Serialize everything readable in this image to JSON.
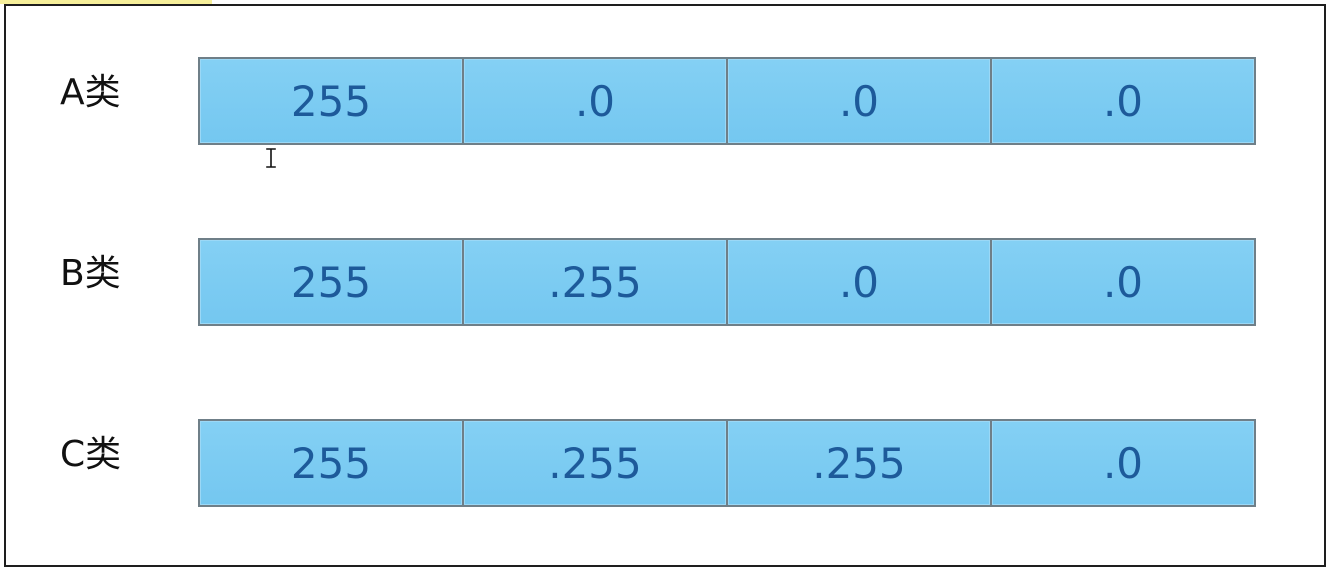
{
  "rows": [
    {
      "label": "A类",
      "cells": [
        "255",
        ".0",
        ".0",
        ".0"
      ]
    },
    {
      "label": "B类",
      "cells": [
        "255",
        ".255",
        ".0",
        ".0"
      ]
    },
    {
      "label": "C类",
      "cells": [
        "255",
        ".255",
        ".255",
        ".0"
      ]
    }
  ],
  "colors": {
    "cell_fill": "#78c9f1",
    "cell_border": "#6f7f88",
    "cell_text": "#1d5a9a",
    "label_text": "#111111"
  },
  "icons": {
    "cursor": "text-cursor-icon"
  }
}
